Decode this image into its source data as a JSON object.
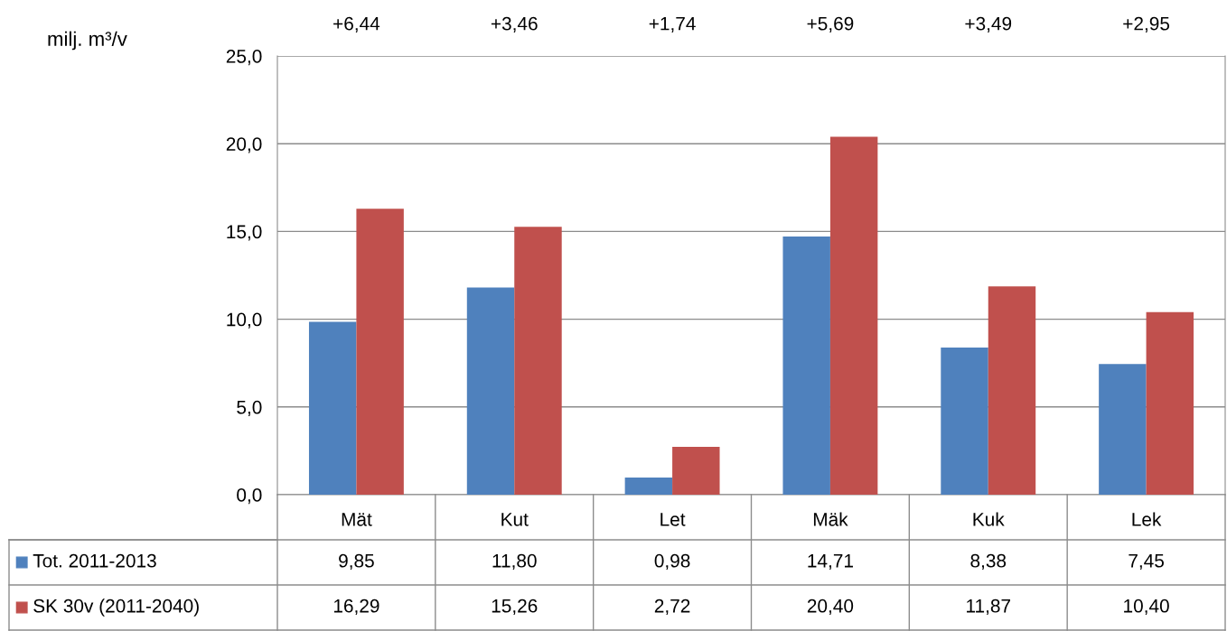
{
  "chart_data": {
    "type": "bar",
    "ylabel": "milj. m³/v",
    "categories": [
      "Mät",
      "Kut",
      "Let",
      "Mäk",
      "Kuk",
      "Lek"
    ],
    "series": [
      {
        "name": "Tot. 2011-2013",
        "color": "#4f81bd",
        "values": [
          9.85,
          11.8,
          0.98,
          14.71,
          8.38,
          7.45
        ],
        "value_labels": [
          "9,85",
          "11,80",
          "0,98",
          "14,71",
          "8,38",
          "7,45"
        ]
      },
      {
        "name": "SK 30v (2011-2040)",
        "color": "#c0504d",
        "values": [
          16.29,
          15.26,
          2.72,
          20.4,
          11.87,
          10.4
        ],
        "value_labels": [
          "16,29",
          "15,26",
          "2,72",
          "20,40",
          "11,87",
          "10,40"
        ]
      }
    ],
    "ylim": [
      0,
      25
    ],
    "yticks": [
      {
        "value": 0,
        "label": "0,0"
      },
      {
        "value": 5,
        "label": "5,0"
      },
      {
        "value": 10,
        "label": "10,0"
      },
      {
        "value": 15,
        "label": "15,0"
      },
      {
        "value": 20,
        "label": "20,0"
      },
      {
        "value": 25,
        "label": "25,0"
      }
    ],
    "annotations": [
      "+6,44",
      "+3,46",
      "+1,74",
      "+5,69",
      "+3,49",
      "+2,95"
    ],
    "grid": "y",
    "legend": "bottom"
  }
}
